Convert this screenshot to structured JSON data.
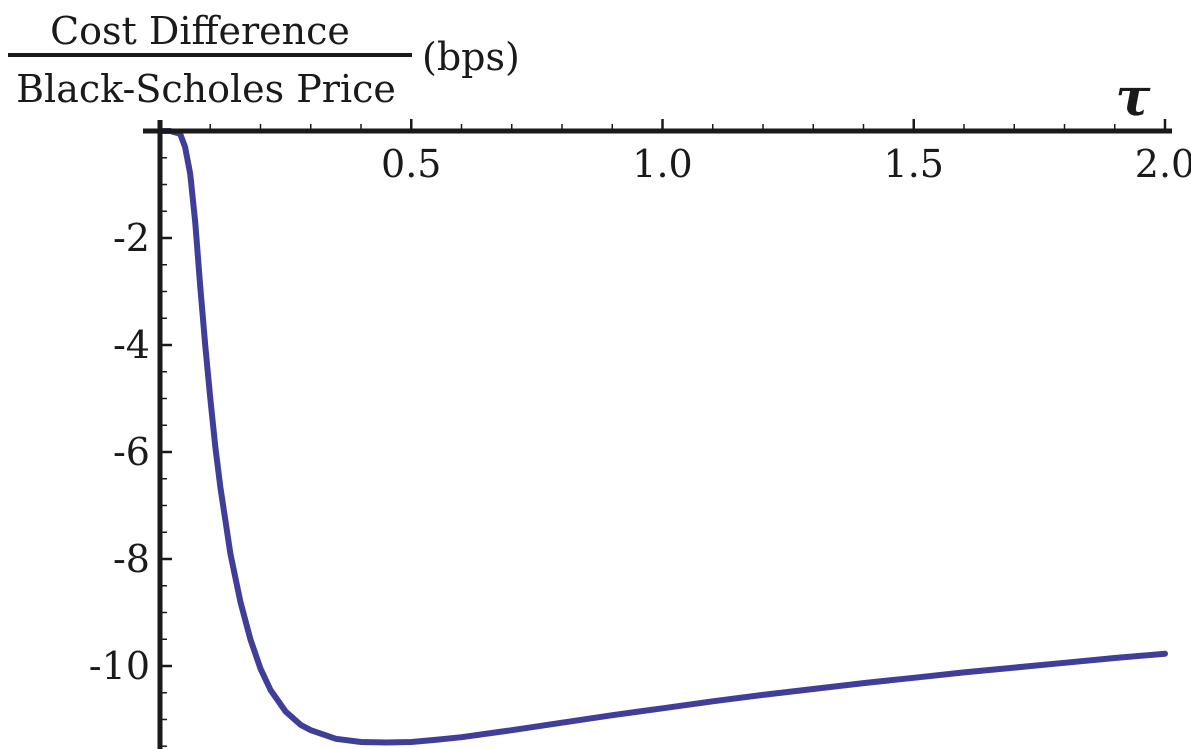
{
  "chart_data": {
    "type": "line",
    "title": "",
    "xlabel": "τ",
    "ylabel": {
      "numerator": "Cost Difference",
      "denominator": "Black-Scholes Price",
      "unit": "(bps)"
    },
    "xlim": [
      0,
      2.0
    ],
    "ylim": [
      -11.5,
      0
    ],
    "x_ticks": [
      {
        "value": 0.5,
        "label": "0.5"
      },
      {
        "value": 1.0,
        "label": "1.0"
      },
      {
        "value": 1.5,
        "label": "1.5"
      },
      {
        "value": 2.0,
        "label": "2.0"
      }
    ],
    "y_ticks": [
      {
        "value": -2,
        "label": "-2"
      },
      {
        "value": -4,
        "label": "-4"
      },
      {
        "value": -6,
        "label": "-6"
      },
      {
        "value": -8,
        "label": "-8"
      },
      {
        "value": -10,
        "label": "-10"
      }
    ],
    "grid": false,
    "series": [
      {
        "color": "#3f3f9a",
        "x": [
          0.0,
          0.02,
          0.04,
          0.05,
          0.06,
          0.07,
          0.08,
          0.09,
          0.1,
          0.11,
          0.12,
          0.14,
          0.16,
          0.18,
          0.2,
          0.22,
          0.25,
          0.28,
          0.3,
          0.35,
          0.4,
          0.45,
          0.5,
          0.55,
          0.6,
          0.7,
          0.8,
          0.9,
          1.0,
          1.1,
          1.2,
          1.3,
          1.4,
          1.5,
          1.6,
          1.7,
          1.8,
          1.9,
          2.0
        ],
        "y": [
          0.0,
          0.0,
          -0.05,
          -0.3,
          -0.8,
          -1.7,
          -2.9,
          -4.0,
          -5.0,
          -5.9,
          -6.65,
          -7.9,
          -8.8,
          -9.5,
          -10.05,
          -10.45,
          -10.85,
          -11.1,
          -11.2,
          -11.36,
          -11.42,
          -11.43,
          -11.42,
          -11.38,
          -11.33,
          -11.2,
          -11.06,
          -10.92,
          -10.79,
          -10.66,
          -10.54,
          -10.43,
          -10.32,
          -10.22,
          -10.12,
          -10.03,
          -9.94,
          -9.85,
          -9.77
        ]
      }
    ]
  }
}
